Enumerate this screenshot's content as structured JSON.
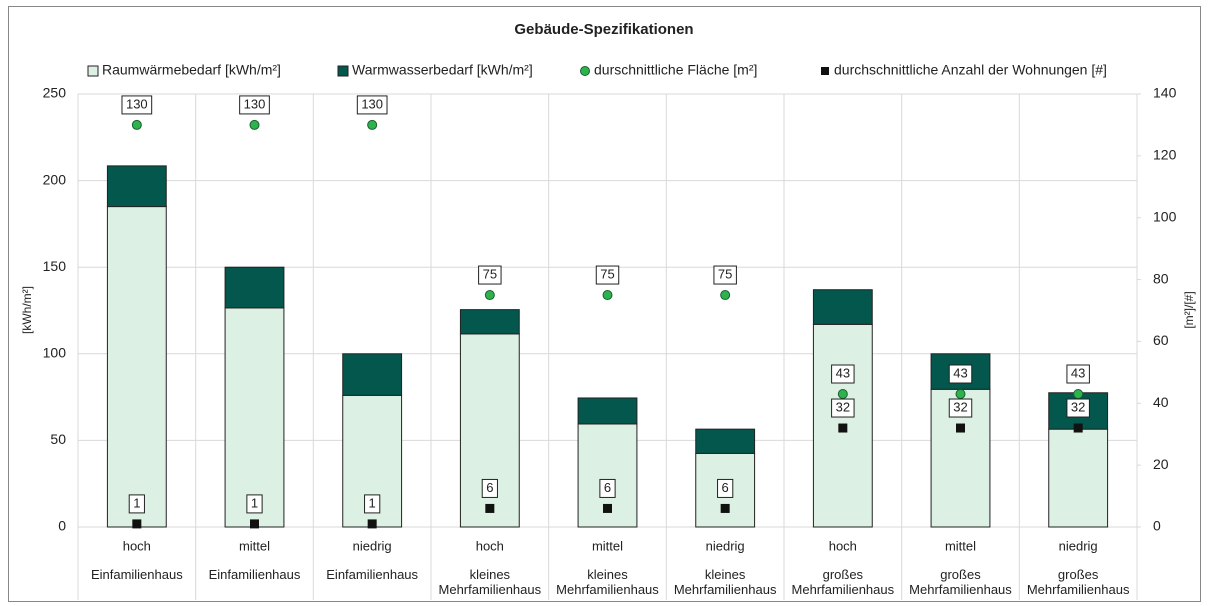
{
  "chart_data": {
    "type": "bar",
    "stacked": true,
    "grid": true,
    "title": "Gebäude-Spezifikationen",
    "ylabel": "[kWh/m²]",
    "y2label": "[m²]/[#]",
    "groups": [
      {
        "name": "Einfamilienhaus",
        "categories": [
          "hoch",
          "mittel",
          "niedrig"
        ]
      },
      {
        "name": "kleines Mehrfamilienhaus",
        "categories": [
          "hoch",
          "mittel",
          "niedrig"
        ]
      },
      {
        "name": "großes Mehrfamilienhaus",
        "categories": [
          "hoch",
          "mittel",
          "niedrig"
        ]
      }
    ],
    "series": [
      {
        "name": "Raumwärmebedarf [kWh/m²]",
        "type": "bar",
        "color": "#ddf0e4",
        "values": [
          185,
          126.5,
          76,
          111.5,
          59.5,
          42.5,
          117,
          79.5,
          56.5
        ]
      },
      {
        "name": "Warmwasserbedarf [kWh/m²]",
        "type": "bar",
        "color": "#03574d",
        "values": [
          23.5,
          23.5,
          24,
          14,
          15,
          14,
          20,
          20.5,
          21
        ]
      },
      {
        "name": "durschnittliche Fläche [m²]",
        "type": "scatter",
        "marker": "circle",
        "axis": "y2",
        "color": "#2db34e",
        "values": [
          130,
          130,
          130,
          75,
          75,
          75,
          43,
          43,
          43
        ]
      },
      {
        "name": "durchschnittliche Anzahl der Wohnungen [#]",
        "type": "scatter",
        "marker": "square",
        "axis": "y2",
        "color": "#111111",
        "values": [
          1,
          1,
          1,
          6,
          6,
          6,
          32,
          32,
          32
        ]
      }
    ],
    "ylim": [
      0,
      250
    ],
    "yticks": [
      0,
      50,
      100,
      150,
      200,
      250
    ],
    "y2lim": [
      0,
      140
    ],
    "y2ticks": [
      0,
      20,
      40,
      60,
      80,
      100,
      120,
      140
    ]
  }
}
